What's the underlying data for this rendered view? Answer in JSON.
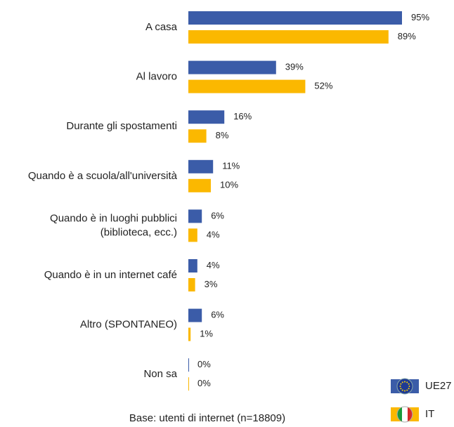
{
  "chart_data": {
    "type": "hbar",
    "categories": [
      "A casa",
      "Al lavoro",
      "Durante gli spostamenti",
      "Quando è a scuola/all'università",
      "Quando è in luoghi pubblici\n(biblioteca, ecc.)",
      "Quando è in un internet café",
      "Altro (SPONTANEO)",
      "Non sa"
    ],
    "series": [
      {
        "name": "UE27",
        "color": "#3b5ca8",
        "values": [
          95,
          39,
          16,
          11,
          6,
          4,
          6,
          0
        ],
        "value_labels": [
          "95%",
          "39%",
          "16%",
          "11%",
          "6%",
          "4%",
          "6%",
          "0%"
        ]
      },
      {
        "name": "IT",
        "color": "#fbb800",
        "values": [
          89,
          52,
          8,
          10,
          4,
          3,
          1,
          0
        ],
        "value_labels": [
          "89%",
          "52%",
          "8%",
          "10%",
          "4%",
          "3%",
          "1%",
          "0%"
        ]
      }
    ],
    "legend": "lower right",
    "footnote": "Base: utenti di internet (n=18809)"
  }
}
